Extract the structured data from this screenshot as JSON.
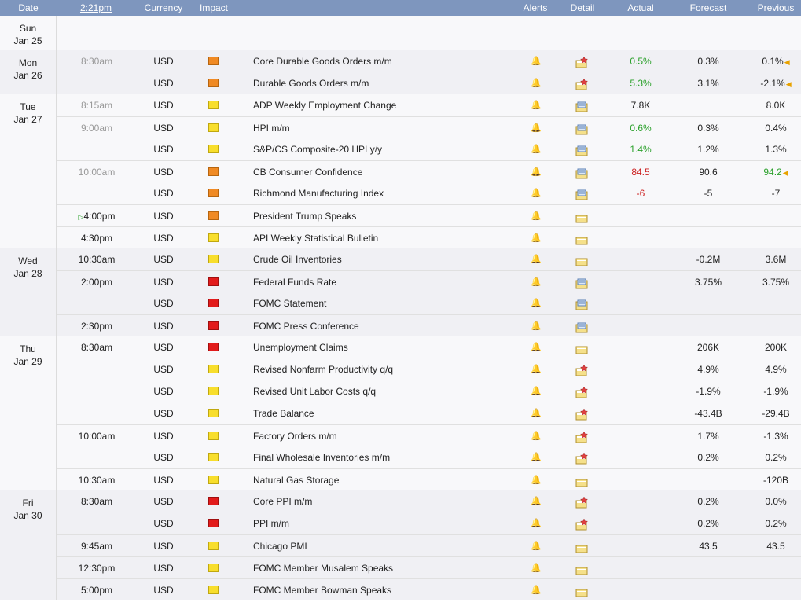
{
  "header": {
    "date": "Date",
    "time": "2:21pm",
    "currency": "Currency",
    "impact": "Impact",
    "alerts": "Alerts",
    "detail": "Detail",
    "actual": "Actual",
    "forecast": "Forecast",
    "previous": "Previous"
  },
  "impact_colors": {
    "orange": "#f08a24",
    "yellow": "#f8de2c",
    "red": "#e21b1b"
  },
  "days": [
    {
      "dow": "Sun",
      "date": "Jan 25",
      "events": []
    },
    {
      "dow": "Mon",
      "date": "Jan 26",
      "events": [
        {
          "time": "8:30am",
          "currency": "USD",
          "impact": "orange",
          "event": "Core Durable Goods Orders m/m",
          "actual": "0.5%",
          "actual_color": "green",
          "forecast": "0.3%",
          "previous": "0.1%",
          "prev_arrow": true,
          "detail": "star"
        },
        {
          "time": "",
          "currency": "USD",
          "impact": "orange",
          "event": "Durable Goods Orders m/m",
          "actual": "5.3%",
          "actual_color": "green",
          "forecast": "3.1%",
          "previous": "-2.1%",
          "prev_arrow": true,
          "detail": "star"
        }
      ]
    },
    {
      "dow": "Tue",
      "date": "Jan 27",
      "events": [
        {
          "time": "8:15am",
          "currency": "USD",
          "impact": "yellow",
          "event": "ADP Weekly Employment Change",
          "actual": "7.8K",
          "actual_color": "",
          "forecast": "",
          "previous": "8.0K",
          "detail": "doc"
        },
        {
          "time": "9:00am",
          "currency": "USD",
          "impact": "yellow",
          "event": "HPI m/m",
          "actual": "0.6%",
          "actual_color": "green",
          "forecast": "0.3%",
          "previous": "0.4%",
          "detail": "doc"
        },
        {
          "time": "",
          "currency": "USD",
          "impact": "yellow",
          "event": "S&P/CS Composite-20 HPI y/y",
          "actual": "1.4%",
          "actual_color": "green",
          "forecast": "1.2%",
          "previous": "1.3%",
          "detail": "doc"
        },
        {
          "time": "10:00am",
          "currency": "USD",
          "impact": "orange",
          "event": "CB Consumer Confidence",
          "actual": "84.5",
          "actual_color": "red",
          "forecast": "90.6",
          "previous": "94.2",
          "prev_color": "green",
          "prev_arrow": true,
          "detail": "doc"
        },
        {
          "time": "",
          "currency": "USD",
          "impact": "orange",
          "event": "Richmond Manufacturing Index",
          "actual": "-6",
          "actual_color": "red",
          "forecast": "-5",
          "previous": "-7",
          "detail": "doc"
        },
        {
          "time": "4:00pm",
          "currency": "USD",
          "impact": "orange",
          "event": "President Trump Speaks",
          "actual": "",
          "forecast": "",
          "previous": "",
          "detail": "folder",
          "play": true
        },
        {
          "time": "4:30pm",
          "currency": "USD",
          "impact": "yellow",
          "event": "API Weekly Statistical Bulletin",
          "actual": "",
          "forecast": "",
          "previous": "",
          "detail": "folder"
        }
      ]
    },
    {
      "dow": "Wed",
      "date": "Jan 28",
      "events": [
        {
          "time": "10:30am",
          "currency": "USD",
          "impact": "yellow",
          "event": "Crude Oil Inventories",
          "actual": "",
          "forecast": "-0.2M",
          "previous": "3.6M",
          "detail": "folder"
        },
        {
          "time": "2:00pm",
          "currency": "USD",
          "impact": "red",
          "event": "Federal Funds Rate",
          "actual": "",
          "forecast": "3.75%",
          "previous": "3.75%",
          "detail": "doc"
        },
        {
          "time": "",
          "currency": "USD",
          "impact": "red",
          "event": "FOMC Statement",
          "actual": "",
          "forecast": "",
          "previous": "",
          "detail": "doc"
        },
        {
          "time": "2:30pm",
          "currency": "USD",
          "impact": "red",
          "event": "FOMC Press Conference",
          "actual": "",
          "forecast": "",
          "previous": "",
          "detail": "doc"
        }
      ]
    },
    {
      "dow": "Thu",
      "date": "Jan 29",
      "events": [
        {
          "time": "8:30am",
          "currency": "USD",
          "impact": "red",
          "event": "Unemployment Claims",
          "actual": "",
          "forecast": "206K",
          "previous": "200K",
          "detail": "folder"
        },
        {
          "time": "",
          "currency": "USD",
          "impact": "yellow",
          "event": "Revised Nonfarm Productivity q/q",
          "actual": "",
          "forecast": "4.9%",
          "previous": "4.9%",
          "detail": "star"
        },
        {
          "time": "",
          "currency": "USD",
          "impact": "yellow",
          "event": "Revised Unit Labor Costs q/q",
          "actual": "",
          "forecast": "-1.9%",
          "previous": "-1.9%",
          "detail": "star"
        },
        {
          "time": "",
          "currency": "USD",
          "impact": "yellow",
          "event": "Trade Balance",
          "actual": "",
          "forecast": "-43.4B",
          "previous": "-29.4B",
          "detail": "star"
        },
        {
          "time": "10:00am",
          "currency": "USD",
          "impact": "yellow",
          "event": "Factory Orders m/m",
          "actual": "",
          "forecast": "1.7%",
          "previous": "-1.3%",
          "detail": "star"
        },
        {
          "time": "",
          "currency": "USD",
          "impact": "yellow",
          "event": "Final Wholesale Inventories m/m",
          "actual": "",
          "forecast": "0.2%",
          "previous": "0.2%",
          "detail": "star"
        },
        {
          "time": "10:30am",
          "currency": "USD",
          "impact": "yellow",
          "event": "Natural Gas Storage",
          "actual": "",
          "forecast": "",
          "previous": "-120B",
          "detail": "folder"
        }
      ]
    },
    {
      "dow": "Fri",
      "date": "Jan 30",
      "events": [
        {
          "time": "8:30am",
          "currency": "USD",
          "impact": "red",
          "event": "Core PPI m/m",
          "actual": "",
          "forecast": "0.2%",
          "previous": "0.0%",
          "detail": "star"
        },
        {
          "time": "",
          "currency": "USD",
          "impact": "red",
          "event": "PPI m/m",
          "actual": "",
          "forecast": "0.2%",
          "previous": "0.2%",
          "detail": "star"
        },
        {
          "time": "9:45am",
          "currency": "USD",
          "impact": "yellow",
          "event": "Chicago PMI",
          "actual": "",
          "forecast": "43.5",
          "previous": "43.5",
          "detail": "folder"
        },
        {
          "time": "12:30pm",
          "currency": "USD",
          "impact": "yellow",
          "event": "FOMC Member Musalem Speaks",
          "actual": "",
          "forecast": "",
          "previous": "",
          "detail": "folder"
        },
        {
          "time": "5:00pm",
          "currency": "USD",
          "impact": "yellow",
          "event": "FOMC Member Bowman Speaks",
          "actual": "",
          "forecast": "",
          "previous": "",
          "detail": "folder"
        }
      ]
    }
  ]
}
